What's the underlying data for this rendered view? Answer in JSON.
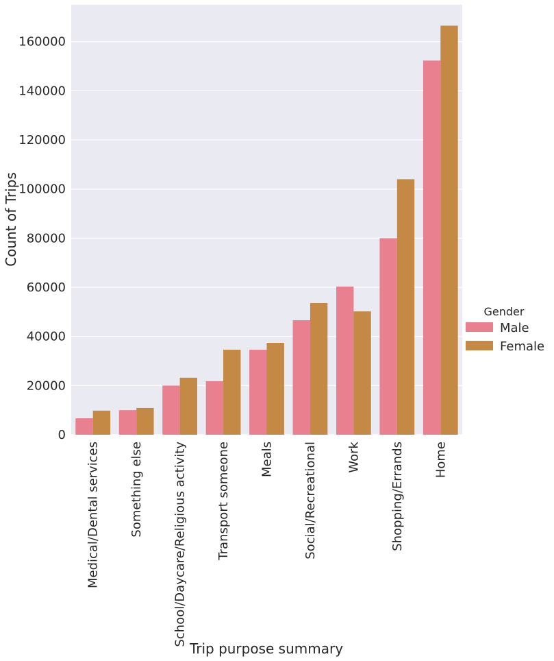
{
  "chart_data": {
    "type": "bar",
    "title": "",
    "xlabel": "Trip purpose summary",
    "ylabel": "Count of Trips",
    "ylim": [
      0,
      175000
    ],
    "yticks": [
      0,
      20000,
      40000,
      60000,
      80000,
      100000,
      120000,
      140000,
      160000
    ],
    "grid": true,
    "legend_title": "Gender",
    "legend_position": "right",
    "categories": [
      "Medical/Dental services",
      "Something else",
      "School/Daycare/Religious activity",
      "Transport someone",
      "Meals",
      "Social/Recreational",
      "Work",
      "Shopping/Errands",
      "Home"
    ],
    "series": [
      {
        "name": "Male",
        "color": "#e8808f",
        "values": [
          6700,
          10000,
          20000,
          21800,
          34600,
          46600,
          60300,
          80000,
          152300
        ]
      },
      {
        "name": "Female",
        "color": "#c38945",
        "values": [
          9800,
          10900,
          23200,
          34600,
          37400,
          53600,
          50200,
          104000,
          166500
        ]
      }
    ]
  }
}
